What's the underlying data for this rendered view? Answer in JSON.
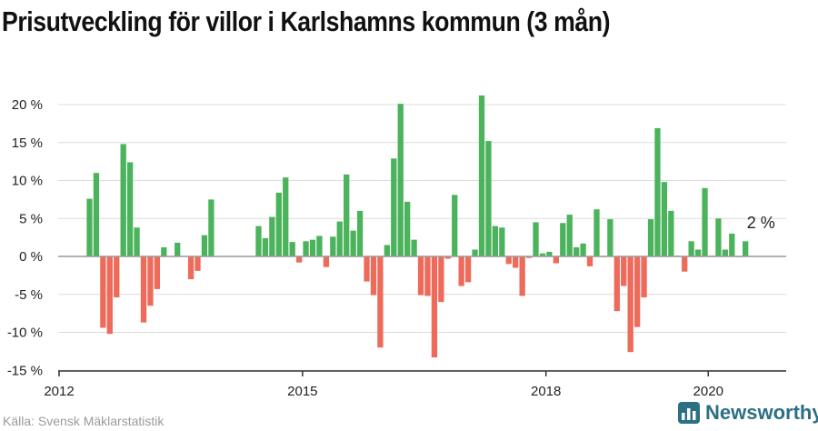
{
  "title": "Prisutveckling för villor i Karlshamns kommun (3 mån)",
  "source": "Källa: Svensk Mäklarstatistik",
  "brand": "Newsworthy",
  "colors": {
    "positive": "#4bb35c",
    "negative": "#ee6a5b",
    "grid": "#dcdcdc",
    "zero": "#999999",
    "brand": "#2b6f84"
  },
  "chart_data": {
    "type": "bar",
    "x_unit": "months since 2012-01",
    "x_ticks": [
      {
        "label": "2012",
        "x": 0
      },
      {
        "label": "2015",
        "x": 36
      },
      {
        "label": "2018",
        "x": 72
      },
      {
        "label": "2020",
        "x": 96
      }
    ],
    "y_ticks": [
      {
        "label": "20 %",
        "v": 20
      },
      {
        "label": "15 %",
        "v": 15
      },
      {
        "label": "10 %",
        "v": 10
      },
      {
        "label": "5 %",
        "v": 5
      },
      {
        "label": "0 %",
        "v": 0
      },
      {
        "label": "-5 %",
        "v": -5
      },
      {
        "label": "-10 %",
        "v": -10
      },
      {
        "label": "-15 %",
        "v": -15
      }
    ],
    "ylim": [
      -15,
      20
    ],
    "grid": true,
    "annotation": {
      "text": "2 %",
      "x": 103
    },
    "points": [
      {
        "x": 4.5,
        "v": 7.6
      },
      {
        "x": 5.5,
        "v": 11.0
      },
      {
        "x": 6.5,
        "v": -9.4
      },
      {
        "x": 7.5,
        "v": -10.2
      },
      {
        "x": 8.5,
        "v": -5.4
      },
      {
        "x": 9.5,
        "v": 14.8
      },
      {
        "x": 10.5,
        "v": 12.4
      },
      {
        "x": 11.5,
        "v": 3.8
      },
      {
        "x": 12.5,
        "v": -8.7
      },
      {
        "x": 13.5,
        "v": -6.5
      },
      {
        "x": 14.5,
        "v": -4.3
      },
      {
        "x": 15.5,
        "v": 1.2
      },
      {
        "x": 17.5,
        "v": 1.8
      },
      {
        "x": 19.5,
        "v": -3.0
      },
      {
        "x": 20.5,
        "v": -1.9
      },
      {
        "x": 21.5,
        "v": 2.8
      },
      {
        "x": 22.5,
        "v": 7.5
      },
      {
        "x": 29.5,
        "v": 4.0
      },
      {
        "x": 30.5,
        "v": 2.4
      },
      {
        "x": 31.5,
        "v": 5.2
      },
      {
        "x": 32.5,
        "v": 8.4
      },
      {
        "x": 33.5,
        "v": 10.4
      },
      {
        "x": 34.5,
        "v": 1.9
      },
      {
        "x": 35.5,
        "v": -0.8
      },
      {
        "x": 36.5,
        "v": 2.0
      },
      {
        "x": 37.5,
        "v": 2.2
      },
      {
        "x": 38.5,
        "v": 2.7
      },
      {
        "x": 39.5,
        "v": -1.4
      },
      {
        "x": 40.5,
        "v": 2.6
      },
      {
        "x": 41.5,
        "v": 4.6
      },
      {
        "x": 42.5,
        "v": 10.8
      },
      {
        "x": 43.5,
        "v": 3.4
      },
      {
        "x": 44.5,
        "v": 6.0
      },
      {
        "x": 45.5,
        "v": -3.3
      },
      {
        "x": 46.5,
        "v": -5.1
      },
      {
        "x": 47.5,
        "v": -12.0
      },
      {
        "x": 48.5,
        "v": 1.5
      },
      {
        "x": 49.5,
        "v": 12.9
      },
      {
        "x": 50.5,
        "v": 20.1
      },
      {
        "x": 51.5,
        "v": 7.2
      },
      {
        "x": 52.5,
        "v": 2.2
      },
      {
        "x": 53.5,
        "v": -5.1
      },
      {
        "x": 54.5,
        "v": -5.2
      },
      {
        "x": 55.5,
        "v": -13.3
      },
      {
        "x": 56.5,
        "v": -6.0
      },
      {
        "x": 57.5,
        "v": -0.3
      },
      {
        "x": 58.5,
        "v": 8.1
      },
      {
        "x": 59.5,
        "v": -3.9
      },
      {
        "x": 60.5,
        "v": -3.4
      },
      {
        "x": 61.5,
        "v": 0.9
      },
      {
        "x": 62.5,
        "v": 21.2
      },
      {
        "x": 63.5,
        "v": 15.2
      },
      {
        "x": 64.5,
        "v": 4.0
      },
      {
        "x": 65.5,
        "v": 3.8
      },
      {
        "x": 66.5,
        "v": -1.0
      },
      {
        "x": 67.5,
        "v": -1.5
      },
      {
        "x": 68.5,
        "v": -5.2
      },
      {
        "x": 69.5,
        "v": -0.2
      },
      {
        "x": 70.5,
        "v": 4.5
      },
      {
        "x": 71.5,
        "v": 0.4
      },
      {
        "x": 72.5,
        "v": 0.6
      },
      {
        "x": 73.5,
        "v": -0.9
      },
      {
        "x": 74.5,
        "v": 4.4
      },
      {
        "x": 75.5,
        "v": 5.5
      },
      {
        "x": 76.5,
        "v": 1.2
      },
      {
        "x": 77.5,
        "v": 1.7
      },
      {
        "x": 78.5,
        "v": -1.3
      },
      {
        "x": 79.5,
        "v": 6.2
      },
      {
        "x": 80.5,
        "v": -0.1
      },
      {
        "x": 81.5,
        "v": 4.9
      },
      {
        "x": 82.5,
        "v": -7.2
      },
      {
        "x": 83.5,
        "v": -3.9
      },
      {
        "x": 84.5,
        "v": -12.6
      },
      {
        "x": 85.5,
        "v": -9.3
      },
      {
        "x": 86.5,
        "v": -5.4
      },
      {
        "x": 87.5,
        "v": 4.9
      },
      {
        "x": 88.5,
        "v": 16.9
      },
      {
        "x": 89.5,
        "v": 9.8
      },
      {
        "x": 90.5,
        "v": 6.0
      },
      {
        "x": 91.5,
        "v": 0.1
      },
      {
        "x": 92.5,
        "v": -2.0
      },
      {
        "x": 93.5,
        "v": 2.0
      },
      {
        "x": 94.5,
        "v": 0.9
      },
      {
        "x": 95.5,
        "v": 9.0
      },
      {
        "x": 96.5,
        "v": 0.1
      },
      {
        "x": 97.5,
        "v": 5.0
      },
      {
        "x": 98.5,
        "v": 0.9
      },
      {
        "x": 99.5,
        "v": 3.0
      },
      {
        "x": 100.5,
        "v": -0.1
      },
      {
        "x": 101.5,
        "v": 2.0
      }
    ]
  }
}
